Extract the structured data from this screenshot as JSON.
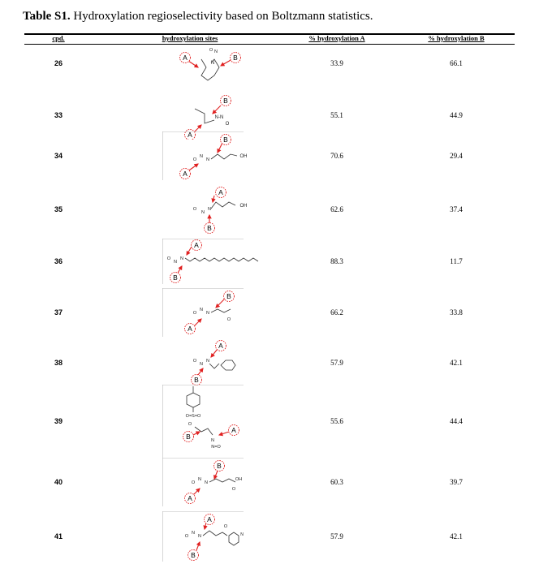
{
  "caption": {
    "label": "Table S1.",
    "text": " Hydroxylation regioselectivity based on Boltzmann statistics."
  },
  "headers": {
    "cpd": "cpd.",
    "sites": "hydroxylation sites",
    "pctA": "% hydroxylation A",
    "pctB": "% hydroxylation B"
  },
  "site_labels": {
    "a": "A",
    "b": "B"
  },
  "rows": [
    {
      "cpd": "26",
      "pctA": "33.9",
      "pctB": "66.1"
    },
    {
      "cpd": "33",
      "pctA": "55.1",
      "pctB": "44.9"
    },
    {
      "cpd": "34",
      "pctA": "70.6",
      "pctB": "29.4"
    },
    {
      "cpd": "35",
      "pctA": "62.6",
      "pctB": "37.4"
    },
    {
      "cpd": "36",
      "pctA": "88.3",
      "pctB": "11.7"
    },
    {
      "cpd": "37",
      "pctA": "66.2",
      "pctB": "33.8"
    },
    {
      "cpd": "38",
      "pctA": "57.9",
      "pctB": "42.1"
    },
    {
      "cpd": "39",
      "pctA": "55.6",
      "pctB": "44.4"
    },
    {
      "cpd": "40",
      "pctA": "60.3",
      "pctB": "39.7"
    },
    {
      "cpd": "41",
      "pctA": "57.9",
      "pctB": "42.1"
    }
  ],
  "colors": {
    "arrow": "#e02020",
    "rule": "#000000"
  }
}
